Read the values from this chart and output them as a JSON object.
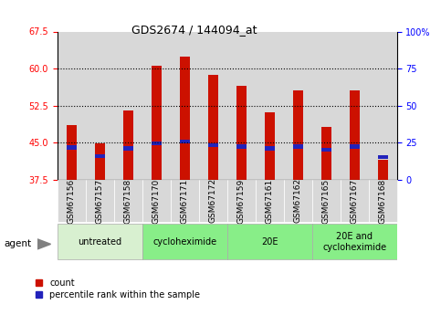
{
  "title": "GDS2674 / 144094_at",
  "samples": [
    "GSM67156",
    "GSM67157",
    "GSM67158",
    "GSM67170",
    "GSM67171",
    "GSM67172",
    "GSM67159",
    "GSM67161",
    "GSM67162",
    "GSM67165",
    "GSM67167",
    "GSM67168"
  ],
  "counts": [
    48.5,
    44.8,
    51.5,
    60.5,
    62.5,
    58.8,
    56.5,
    51.2,
    55.5,
    48.2,
    55.5,
    41.5
  ],
  "percentile_y": [
    44.0,
    42.2,
    43.8,
    44.8,
    45.2,
    44.5,
    44.2,
    43.8,
    44.2,
    43.5,
    44.2,
    42.0
  ],
  "ylim_left": [
    37.5,
    67.5
  ],
  "ylim_right": [
    0,
    100
  ],
  "yticks_left": [
    37.5,
    45.0,
    52.5,
    60.0,
    67.5
  ],
  "yticks_right": [
    0,
    25,
    50,
    75,
    100
  ],
  "bar_color": "#cc1100",
  "percentile_color": "#2222bb",
  "groups": [
    {
      "label": "untreated",
      "start": 0,
      "end": 3,
      "color": "#d8f0d0"
    },
    {
      "label": "cycloheximide",
      "start": 3,
      "end": 6,
      "color": "#88ee88"
    },
    {
      "label": "20E",
      "start": 6,
      "end": 9,
      "color": "#88ee88"
    },
    {
      "label": "20E and\ncycloheximide",
      "start": 9,
      "end": 12,
      "color": "#88ee88"
    }
  ],
  "bar_width": 0.35,
  "legend_count_label": "count",
  "legend_percentile_label": "percentile rank within the sample",
  "agent_label": "agent"
}
